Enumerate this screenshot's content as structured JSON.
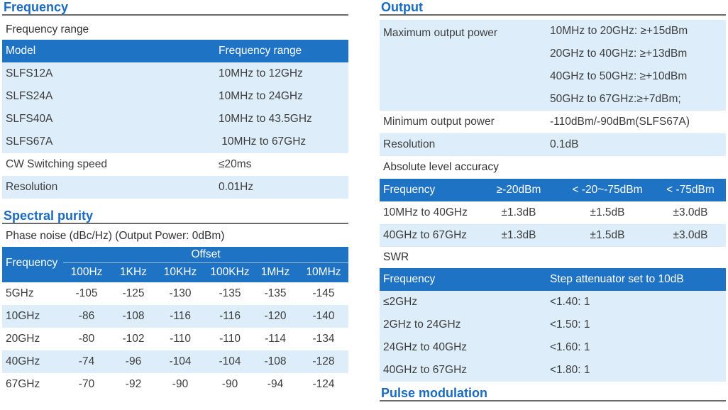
{
  "frequency": {
    "title": "Frequency",
    "range_subtitle": "Frequency range",
    "headers": [
      "Model",
      "Frequency range"
    ],
    "rows": [
      [
        "SLFS12A",
        "10MHz to 12GHz"
      ],
      [
        "SLFS24A",
        "10MHz to 24GHz"
      ],
      [
        "SLFS40A",
        "10MHz to 43.5GHz"
      ],
      [
        "SLFS67A",
        " 10MHz to 67GHz"
      ]
    ],
    "cw_switching": {
      "label": "CW Switching speed",
      "value": "≤20ms"
    },
    "resolution": {
      "label": "Resolution",
      "value": "0.01Hz"
    }
  },
  "spectral": {
    "title": "Spectral purity",
    "phase_noise_subtitle": "Phase noise (dBc/Hz) (Output Power: 0dBm)",
    "freq_header": "Frequency",
    "offset_header": "Offset",
    "offsets": [
      "100Hz",
      "1KHz",
      "10KHz",
      "100KHz",
      "1MHz",
      "10MHz"
    ],
    "rows": [
      {
        "freq": "5GHz",
        "values": [
          "-105",
          "-125",
          "-130",
          "-135",
          "-135",
          "-145"
        ]
      },
      {
        "freq": "10GHz",
        "values": [
          "-86",
          "-108",
          "-116",
          "-116",
          "-120",
          "-140"
        ]
      },
      {
        "freq": "20GHz",
        "values": [
          "-80",
          "-102",
          "-110",
          "-110",
          "-114",
          "-134"
        ]
      },
      {
        "freq": "40GHz",
        "values": [
          "-74",
          "-96",
          "-104",
          "-104",
          "-108",
          "-128"
        ]
      },
      {
        "freq": "67GHz",
        "values": [
          "-70",
          "-92",
          "-90",
          "-90",
          "-94",
          "-124"
        ]
      }
    ]
  },
  "output": {
    "title": "Output",
    "max_power_label": "Maximum output power",
    "max_power_values": [
      "10MHz to 20GHz: ≥+15dBm",
      "20GHz to 40GHz: ≥+13dBm",
      "40GHz to 50GHz: ≥+10dBm",
      "50GHz to 67GHz:≥+7dBm;"
    ],
    "min_power": {
      "label": "Minimum output power",
      "value": "-110dBm/-90dBm(SLFS67A)"
    },
    "resolution": {
      "label": "Resolution",
      "value": "0.1dB"
    },
    "accuracy": {
      "subtitle": "Absolute level accuracy",
      "headers": [
        "Frequency",
        "≥-20dBm",
        "< -20~-75dBm",
        "< -75dBm"
      ],
      "rows": [
        [
          "10MHz to 40GHz",
          "±1.3dB",
          "±1.5dB",
          "±3.0dB"
        ],
        [
          "40GHz to 67GHz",
          "±1.3dB",
          "±1.5dB",
          "±3.0dB"
        ]
      ]
    },
    "swr": {
      "subtitle": "SWR",
      "headers": [
        "Frequency",
        "Step attenuator set to 10dB"
      ],
      "rows": [
        [
          "≤2GHz",
          "<1.40: 1"
        ],
        [
          "2GHz to 24GHz",
          "<1.50: 1"
        ],
        [
          "24GHz to 40GHz",
          "<1.60: 1"
        ],
        [
          "40GHz to 67GHz",
          "<1.80: 1"
        ]
      ]
    }
  },
  "pulse": {
    "title": "Pulse modulation"
  }
}
